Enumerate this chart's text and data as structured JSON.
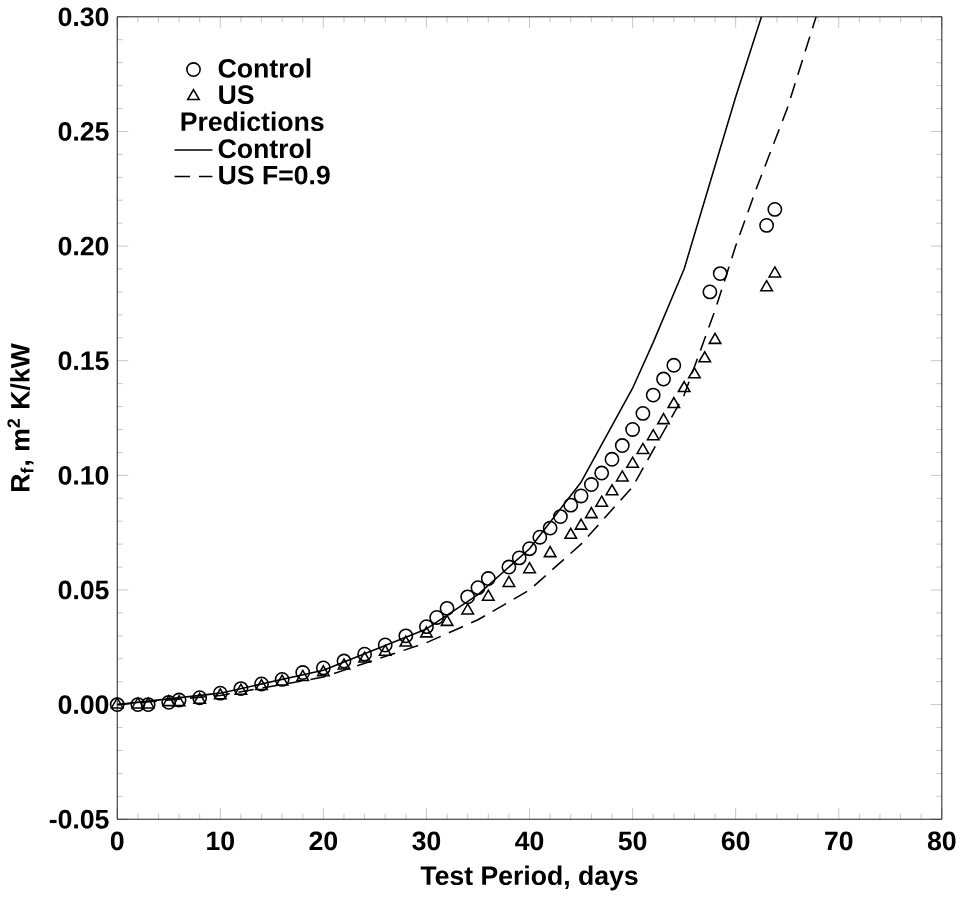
{
  "chart_data": {
    "type": "scatter",
    "xlabel": "Test Period, days",
    "ylabel": "R$_{f}$, m$^{2}$ K/kW",
    "xlim": [
      0,
      80
    ],
    "ylim": [
      -0.05,
      0.3
    ],
    "xticks": [
      0,
      10,
      20,
      30,
      40,
      50,
      60,
      70,
      80
    ],
    "yticks": [
      {
        "value": -0.05,
        "label": "-0.05"
      },
      {
        "value": 0,
        "label": "0.00"
      },
      {
        "value": 0.05,
        "label": "0.05"
      },
      {
        "value": 0.1,
        "label": "0.10"
      },
      {
        "value": 0.15,
        "label": "0.15"
      },
      {
        "value": 0.2,
        "label": "0.20"
      },
      {
        "value": 0.25,
        "label": "0.25"
      },
      {
        "value": 0.3,
        "label": "0.30"
      }
    ],
    "legend": "top left",
    "grid": false,
    "annotations": [
      "Predictions"
    ],
    "series": [
      {
        "name": "Control",
        "marker": "circle",
        "color": "#000000",
        "x": [
          0,
          2,
          3,
          5,
          6,
          8,
          10,
          12,
          14,
          16,
          18,
          20,
          22,
          24,
          26,
          28,
          30,
          31,
          32,
          34,
          35,
          36,
          38,
          39,
          40,
          41,
          42,
          43,
          44,
          45,
          46,
          47,
          48,
          49,
          50,
          51,
          52,
          53,
          54,
          57.5,
          58.5,
          63,
          63.8
        ],
        "values": [
          0,
          0,
          0,
          0.001,
          0.002,
          0.003,
          0.005,
          0.007,
          0.009,
          0.011,
          0.014,
          0.016,
          0.019,
          0.022,
          0.026,
          0.03,
          0.034,
          0.038,
          0.042,
          0.047,
          0.051,
          0.055,
          0.06,
          0.064,
          0.068,
          0.073,
          0.077,
          0.082,
          0.087,
          0.091,
          0.096,
          0.101,
          0.107,
          0.113,
          0.12,
          0.127,
          0.135,
          0.142,
          0.148,
          0.18,
          0.188,
          0.209,
          0.216
        ]
      },
      {
        "name": "US",
        "marker": "triangle",
        "color": "#000000",
        "x": [
          0,
          2,
          3,
          5,
          6,
          8,
          10,
          12,
          14,
          16,
          18,
          20,
          22,
          24,
          26,
          28,
          30,
          32,
          34,
          36,
          38,
          40,
          42,
          44,
          45,
          46,
          47,
          48,
          49,
          50,
          51,
          52,
          53,
          54,
          55,
          56,
          57,
          58,
          63,
          63.8
        ],
        "values": [
          0,
          0,
          0,
          0.001,
          0.001,
          0.002,
          0.004,
          0.006,
          0.008,
          0.01,
          0.012,
          0.014,
          0.017,
          0.02,
          0.023,
          0.027,
          0.031,
          0.036,
          0.041,
          0.047,
          0.053,
          0.059,
          0.066,
          0.074,
          0.078,
          0.083,
          0.088,
          0.093,
          0.099,
          0.105,
          0.111,
          0.117,
          0.124,
          0.131,
          0.138,
          0.144,
          0.151,
          0.159,
          0.182,
          0.188
        ]
      },
      {
        "name": "Control",
        "type": "line",
        "line_style": "solid",
        "color": "#000000",
        "x": [
          0,
          10,
          20,
          30,
          35,
          40,
          45,
          50,
          52,
          55,
          58,
          60,
          62.5
        ],
        "values": [
          0,
          0.005,
          0.015,
          0.033,
          0.048,
          0.068,
          0.097,
          0.138,
          0.158,
          0.19,
          0.235,
          0.265,
          0.3
        ]
      },
      {
        "name": "US F=0.9",
        "type": "line",
        "line_style": "dashed",
        "color": "#000000",
        "x": [
          0,
          10,
          20,
          30,
          35,
          40,
          45,
          50,
          55,
          58,
          60,
          62,
          65,
          67.8
        ],
        "values": [
          0,
          0.004,
          0.012,
          0.027,
          0.037,
          0.05,
          0.07,
          0.095,
          0.135,
          0.172,
          0.2,
          0.225,
          0.26,
          0.3
        ]
      }
    ]
  }
}
